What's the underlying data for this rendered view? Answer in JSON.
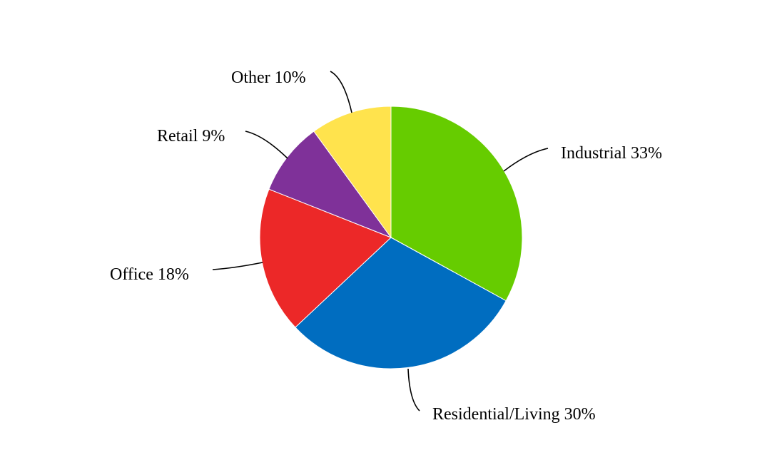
{
  "chart_data": {
    "type": "pie",
    "title": "",
    "start": "12 o'clock",
    "direction": "clockwise",
    "slices": [
      {
        "name": "Industrial",
        "value": 33,
        "label": "Industrial 33%",
        "color": "#66CC00"
      },
      {
        "name": "Residential/Living",
        "value": 30,
        "label": "Residential/Living 30%",
        "color": "#006DC0"
      },
      {
        "name": "Office",
        "value": 18,
        "label": "Office 18%",
        "color": "#EC2828"
      },
      {
        "name": "Retail",
        "value": 9,
        "label": "Retail 9%",
        "color": "#7F3199"
      },
      {
        "name": "Other",
        "value": 10,
        "label": "Other 10%",
        "color": "#FFE34D"
      }
    ]
  }
}
